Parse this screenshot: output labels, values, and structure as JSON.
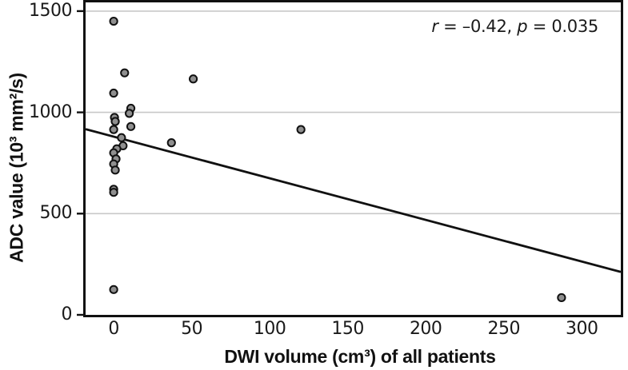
{
  "figure": {
    "annotation": {
      "full_text": "r = –0.42, p = 0.035",
      "parts": [
        {
          "text": "r",
          "italic": true
        },
        {
          "text": " = –0.42, ",
          "italic": false
        },
        {
          "text": "p",
          "italic": true
        },
        {
          "text": " = 0.035",
          "italic": false
        }
      ]
    }
  },
  "chart_data": {
    "type": "scatter",
    "title": "",
    "xlabel": "DWI volume (cm³) of all patients",
    "ylabel": "ADC value (10³ mm²/s)",
    "xlim": [
      -18,
      325
    ],
    "ylim": [
      0,
      1543
    ],
    "x_ticks": [
      0,
      50,
      100,
      150,
      200,
      250,
      300
    ],
    "y_ticks": [
      0,
      500,
      1000,
      1500
    ],
    "gridlines": {
      "y_values": [
        500,
        1000,
        1500
      ],
      "color": "#c8c8c8",
      "visible": true
    },
    "legend": null,
    "correlation": {
      "r": -0.42,
      "p": 0.035
    },
    "annotation_text": "r = –0.42, p = 0.035",
    "points": [
      [
        0,
        1450
      ],
      [
        7,
        1195
      ],
      [
        51,
        1165
      ],
      [
        0,
        1095
      ],
      [
        11,
        1020
      ],
      [
        10,
        995
      ],
      [
        0.5,
        975
      ],
      [
        1,
        955
      ],
      [
        11,
        930
      ],
      [
        0,
        915
      ],
      [
        120,
        915
      ],
      [
        5,
        875
      ],
      [
        37,
        850
      ],
      [
        6,
        835
      ],
      [
        2,
        820
      ],
      [
        0,
        800
      ],
      [
        1.5,
        770
      ],
      [
        0,
        745
      ],
      [
        1,
        715
      ],
      [
        0,
        620
      ],
      [
        0,
        605
      ],
      [
        0,
        125
      ],
      [
        287,
        85
      ]
    ],
    "trendline": {
      "x1": -18,
      "y1": 917,
      "x2": 325,
      "y2": 212
    },
    "point_style": {
      "fill": "#8f8f8f",
      "stroke": "#111111",
      "radius": 4.6
    },
    "line_color": "#111111",
    "axis_color": "#111111"
  }
}
